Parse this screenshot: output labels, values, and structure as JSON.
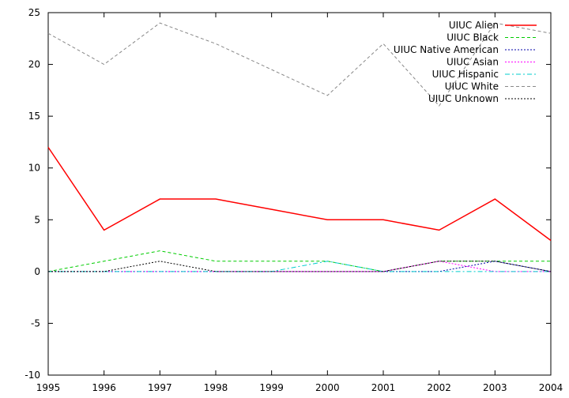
{
  "chart_data": {
    "type": "line",
    "title": "",
    "xlabel": "",
    "ylabel": "",
    "xlim": [
      1995,
      2004
    ],
    "ylim": [
      -10,
      25
    ],
    "x_ticks": [
      "1995",
      "1996",
      "1997",
      "1998",
      "1999",
      "2000",
      "2001",
      "2002",
      "2003",
      "2004"
    ],
    "y_ticks": [
      "-10",
      "-5",
      "0",
      "5",
      "10",
      "15",
      "20",
      "25"
    ],
    "x": [
      1995,
      1996,
      1997,
      1998,
      1999,
      2000,
      2001,
      2002,
      2003,
      2004
    ],
    "grid": false,
    "legend_position": "top-right",
    "series": [
      {
        "name": "UIUC Alien",
        "color": "#ff0000",
        "dash": "solid",
        "values": [
          12,
          4,
          7,
          7,
          6,
          5,
          5,
          4,
          7,
          3
        ]
      },
      {
        "name": "UIUC Black",
        "color": "#00cc00",
        "dash": "dashed",
        "values": [
          0,
          1,
          2,
          1,
          1,
          1,
          0,
          1,
          1,
          1
        ]
      },
      {
        "name": "UIUC Native American",
        "color": "#0000aa",
        "dash": "dotted",
        "values": [
          0,
          0,
          0,
          0,
          0,
          0,
          0,
          0,
          1,
          0
        ]
      },
      {
        "name": "UIUC Asian",
        "color": "#ff00ff",
        "dash": "dotted",
        "values": [
          0,
          0,
          0,
          0,
          0,
          0,
          0,
          1,
          0,
          0
        ]
      },
      {
        "name": "UIUC Hispanic",
        "color": "#00cccc",
        "dash": "dashdot",
        "values": [
          0,
          0,
          0,
          0,
          0,
          1,
          0,
          0,
          0,
          0
        ]
      },
      {
        "name": "UIUC White",
        "color": "#888888",
        "dash": "dashed",
        "values": [
          23,
          20,
          24,
          22,
          19.5,
          17,
          22,
          16,
          24,
          23
        ]
      },
      {
        "name": "UIUC Unknown",
        "color": "#000000",
        "dash": "dotted",
        "values": [
          0,
          0,
          1,
          0,
          0,
          0,
          0,
          1,
          1,
          0
        ]
      }
    ]
  }
}
